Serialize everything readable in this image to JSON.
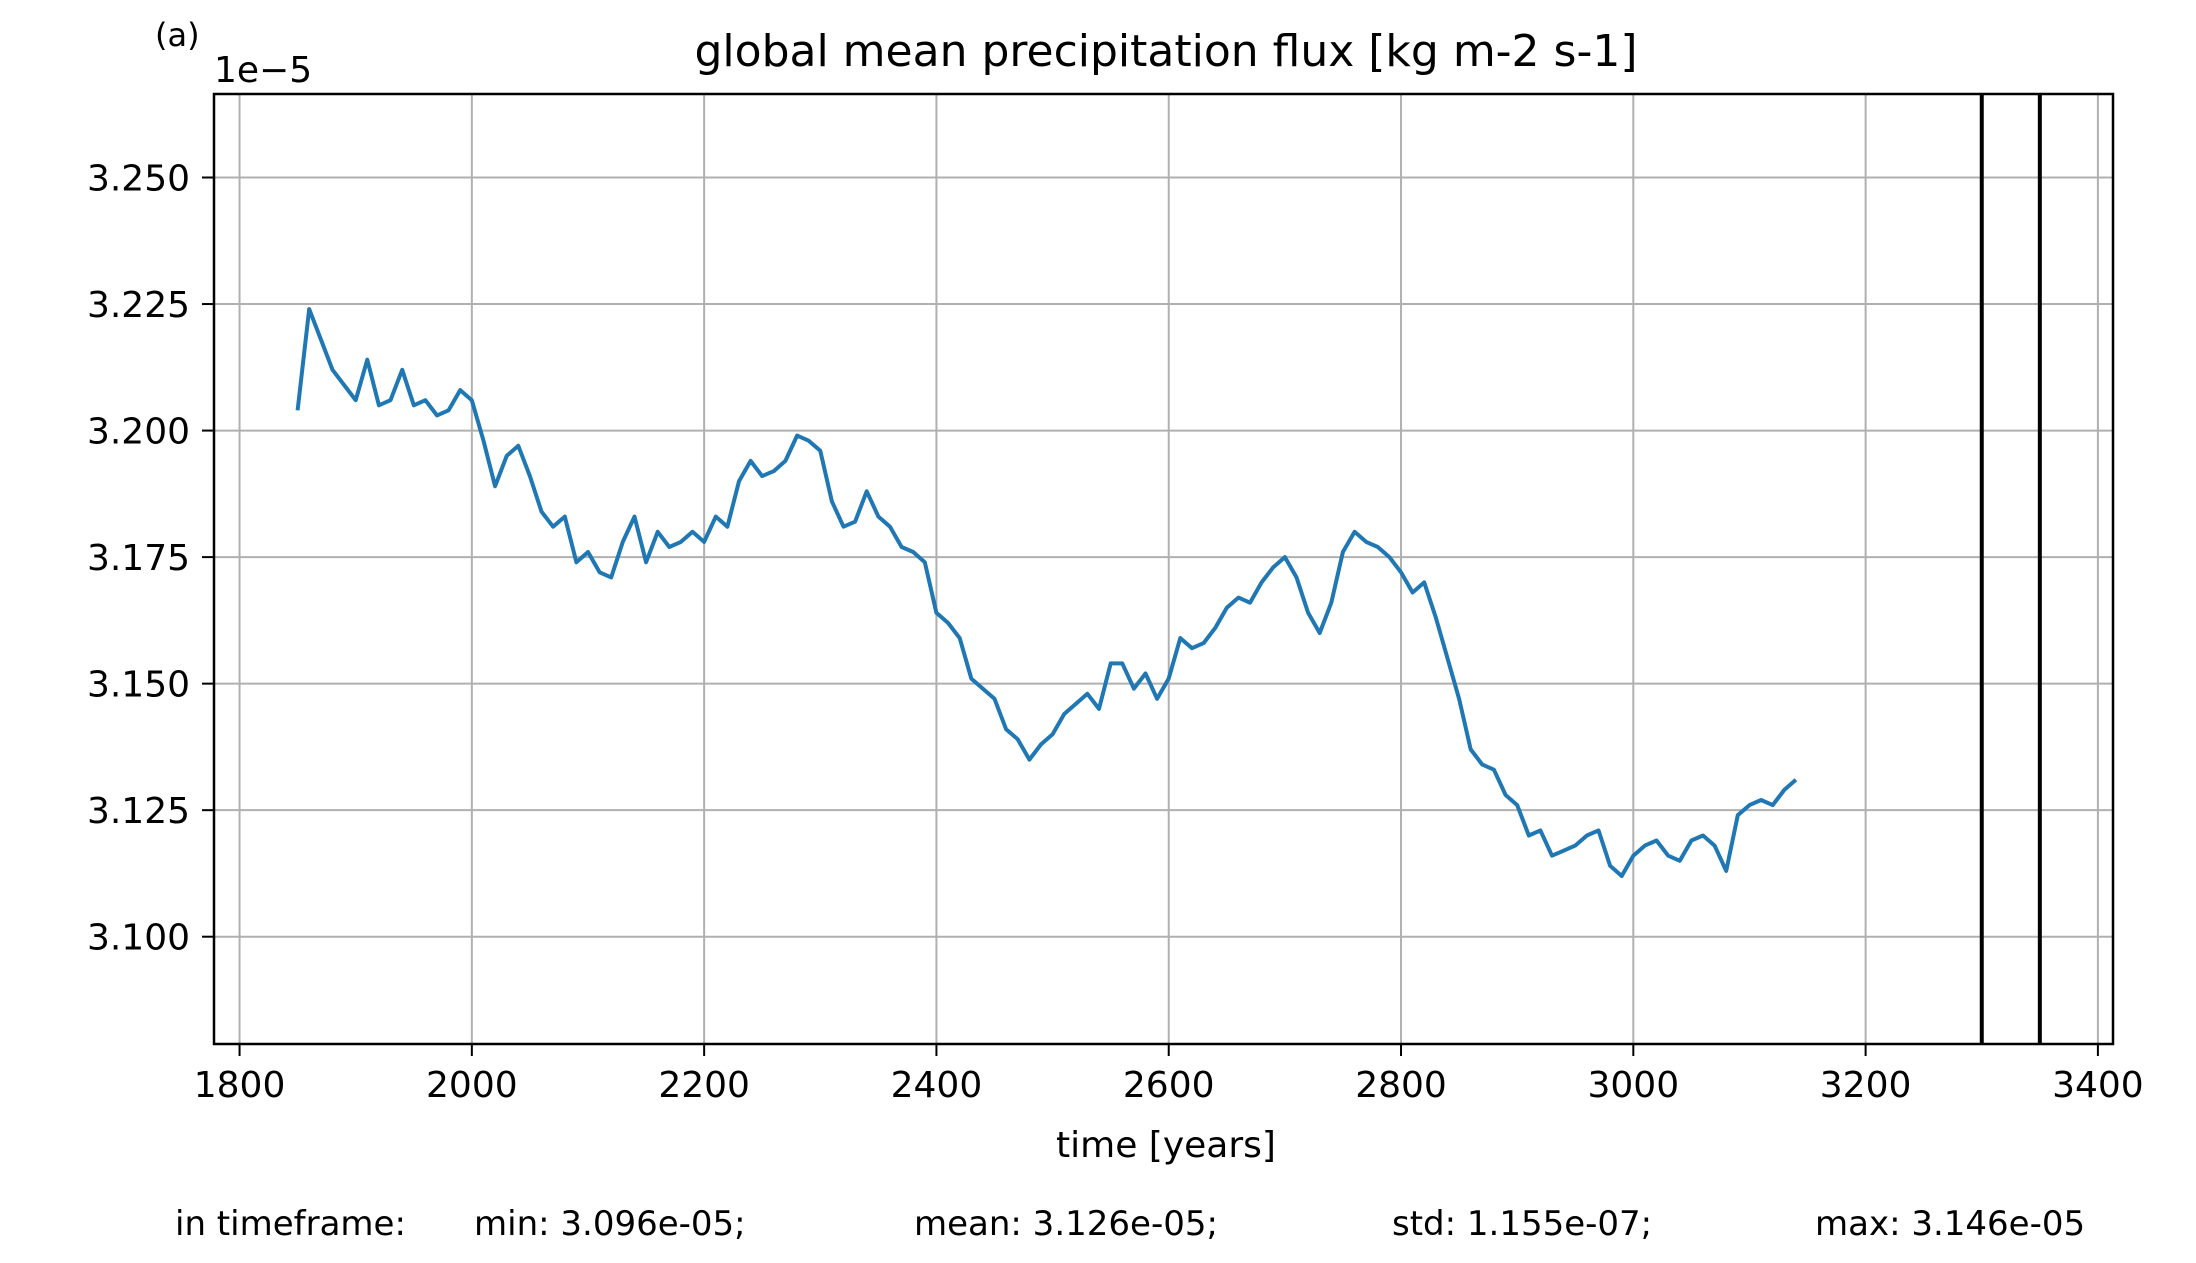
{
  "panel_label": "(a)",
  "stats": {
    "prefix": "in timeframe:",
    "min": "min: 3.096e-05;",
    "mean": "mean: 3.126e-05;",
    "std": "std: 1.155e-07;",
    "max": "max: 3.146e-05"
  },
  "colors": {
    "series": "#1f77b4",
    "grid": "#b0b0b0",
    "vline": "#000000"
  },
  "chart_data": {
    "type": "line",
    "title": "global mean precipitation flux [kg m-2 s-1]",
    "xlabel": "time [years]",
    "ylabel": "",
    "y_multiplier_label": "1e−5",
    "xlim": [
      1778,
      3413
    ],
    "ylim": [
      3.0788,
      3.2665
    ],
    "xticks": [
      1800,
      2000,
      2200,
      2400,
      2600,
      2800,
      3000,
      3200,
      3400
    ],
    "xtick_labels": [
      "1800",
      "2000",
      "2200",
      "2400",
      "2600",
      "2800",
      "3000",
      "3200",
      "3400"
    ],
    "yticks": [
      3.1,
      3.125,
      3.15,
      3.175,
      3.2,
      3.225,
      3.25
    ],
    "ytick_labels": [
      "3.100",
      "3.125",
      "3.150",
      "3.175",
      "3.200",
      "3.225",
      "3.250"
    ],
    "grid": true,
    "vertical_lines": [
      3300,
      3350
    ],
    "series": [
      {
        "x_start": 1850,
        "x_step": 10,
        "values": [
          3.204,
          3.224,
          3.218,
          3.212,
          3.209,
          3.206,
          3.214,
          3.205,
          3.206,
          3.212,
          3.205,
          3.206,
          3.203,
          3.204,
          3.208,
          3.206,
          3.198,
          3.189,
          3.195,
          3.197,
          3.191,
          3.184,
          3.181,
          3.183,
          3.174,
          3.176,
          3.172,
          3.171,
          3.178,
          3.183,
          3.174,
          3.18,
          3.177,
          3.178,
          3.18,
          3.178,
          3.183,
          3.181,
          3.19,
          3.194,
          3.191,
          3.192,
          3.194,
          3.199,
          3.198,
          3.196,
          3.186,
          3.181,
          3.182,
          3.188,
          3.183,
          3.181,
          3.177,
          3.176,
          3.174,
          3.164,
          3.162,
          3.159,
          3.151,
          3.149,
          3.147,
          3.141,
          3.139,
          3.135,
          3.138,
          3.14,
          3.144,
          3.146,
          3.148,
          3.145,
          3.154,
          3.154,
          3.149,
          3.152,
          3.147,
          3.151,
          3.159,
          3.157,
          3.158,
          3.161,
          3.165,
          3.167,
          3.166,
          3.17,
          3.173,
          3.175,
          3.171,
          3.164,
          3.16,
          3.166,
          3.176,
          3.18,
          3.178,
          3.177,
          3.175,
          3.172,
          3.168,
          3.17,
          3.163,
          3.155,
          3.147,
          3.137,
          3.134,
          3.133,
          3.128,
          3.126,
          3.12,
          3.121,
          3.116,
          3.117,
          3.118,
          3.12,
          3.121,
          3.114,
          3.112,
          3.116,
          3.118,
          3.119,
          3.116,
          3.115,
          3.119,
          3.12,
          3.118,
          3.113,
          3.124,
          3.126,
          3.127,
          3.126,
          3.129,
          3.131
        ]
      }
    ]
  }
}
